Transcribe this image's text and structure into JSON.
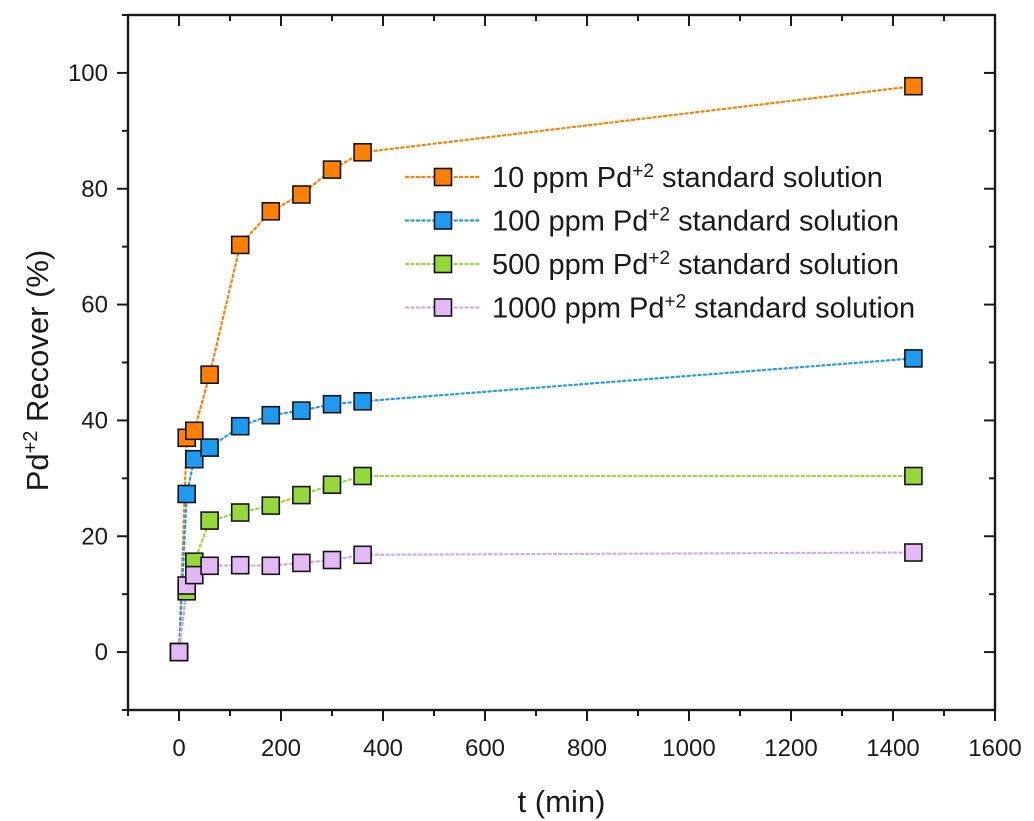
{
  "chart_data": {
    "type": "scatter",
    "connect_style": "dotted-line",
    "xlabel": "t (min)",
    "ylabel": {
      "prefix": "Pd",
      "sup": "+2",
      "suffix": " Recover (%)"
    },
    "xlim": [
      -100,
      1600
    ],
    "ylim": [
      -10,
      110
    ],
    "xticks": [
      0,
      200,
      400,
      600,
      800,
      1000,
      1200,
      1400,
      1600
    ],
    "yticks": [
      0,
      20,
      40,
      60,
      80,
      100
    ],
    "grid": false,
    "legend_position": "upper-right inside",
    "series": [
      {
        "name": "10 ppm Pd+2 standard solution",
        "legend": {
          "prefix": "10 ppm Pd",
          "sup": "+2",
          "suffix": " standard solution"
        },
        "fill": "#ff8000",
        "line": "#ff8000",
        "x": [
          0,
          15,
          30,
          60,
          120,
          180,
          240,
          300,
          360,
          1440
        ],
        "y": [
          0,
          37.0,
          38.2,
          47.9,
          70.3,
          76.1,
          79.0,
          83.3,
          86.3,
          97.7
        ]
      },
      {
        "name": "100 ppm Pd+2 standard solution",
        "legend": {
          "prefix": "100 ppm Pd",
          "sup": "+2",
          "suffix": " standard solution"
        },
        "fill": "#1e9bf0",
        "line": "#1e9bf0",
        "x": [
          0,
          15,
          30,
          60,
          120,
          180,
          240,
          300,
          360,
          1440
        ],
        "y": [
          0,
          27.3,
          33.3,
          35.3,
          39.0,
          40.9,
          41.7,
          42.8,
          43.3,
          50.7
        ]
      },
      {
        "name": "500 ppm Pd+2 standard solution",
        "legend": {
          "prefix": "500 ppm Pd",
          "sup": "+2",
          "suffix": " standard solution"
        },
        "fill": "#96d73c",
        "line": "#96d73c",
        "x": [
          0,
          15,
          30,
          60,
          120,
          180,
          240,
          300,
          360,
          1440
        ],
        "y": [
          0,
          10.5,
          15.6,
          22.7,
          24.1,
          25.3,
          27.1,
          28.9,
          30.4,
          30.4
        ]
      },
      {
        "name": "1000 ppm Pd+2 standard solution",
        "legend": {
          "prefix": "1000 ppm Pd",
          "sup": "+2",
          "suffix": " standard solution"
        },
        "fill": "#e2b9f5",
        "line": "#d7a5f0",
        "x": [
          0,
          15,
          30,
          60,
          120,
          180,
          240,
          300,
          360,
          1440
        ],
        "y": [
          0,
          11.5,
          13.3,
          14.9,
          15.0,
          14.9,
          15.4,
          15.9,
          16.8,
          17.2
        ]
      }
    ]
  }
}
